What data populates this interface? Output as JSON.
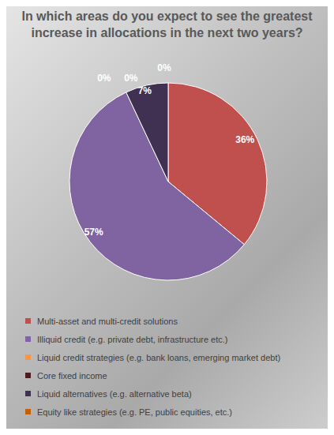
{
  "chart_data": {
    "type": "pie",
    "title": "In which areas do you expect to see the greatest increase in allocations in the next two years?",
    "categories": [
      "Multi-asset and multi-credit solutions",
      "Illiquid credit (e.g. private debt, infrastructure etc.)",
      "Liquid credit strategies (e.g. bank loans, emerging market debt)",
      "Core fixed income",
      "Liquid alternatives (e.g. alternative beta)",
      "Equity like strategies (e.g. PE, public equities, etc.)"
    ],
    "values": [
      36,
      57,
      0,
      0,
      7,
      0
    ],
    "value_labels": [
      "36%",
      "57%",
      "0%",
      "0%",
      "7%",
      "0%"
    ],
    "colors": [
      "#c0504d",
      "#8064a2",
      "#f79646",
      "#4a1e1e",
      "#403152",
      "#c0600a"
    ],
    "data_labels": true,
    "legend": "bottom"
  }
}
